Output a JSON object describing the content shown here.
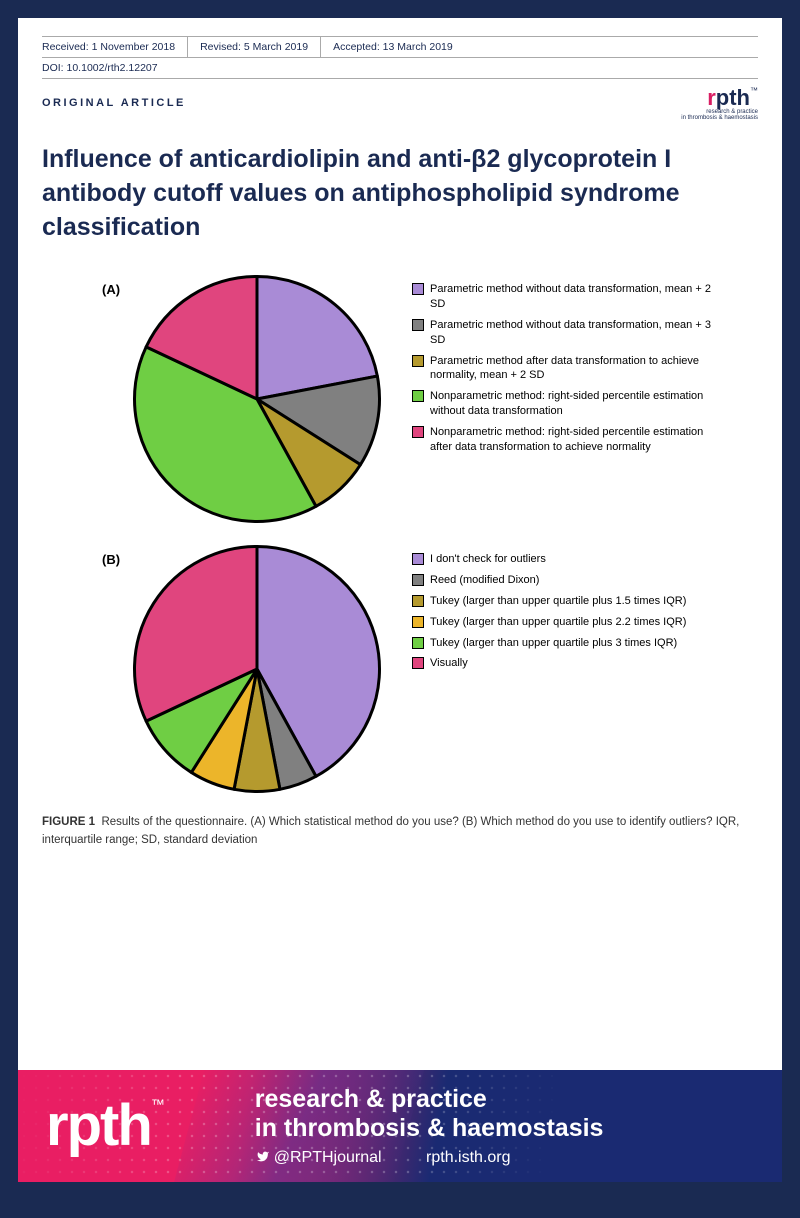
{
  "meta": {
    "received": "Received: 1 November 2018",
    "revised": "Revised: 5 March 2019",
    "accepted": "Accepted: 13 March 2019",
    "doi": "DOI: 10.1002/rth2.12207"
  },
  "article_type": "ORIGINAL ARTICLE",
  "logo_small": {
    "r": "r",
    "pth": "pth",
    "tm": "™",
    "tag1": "research & practice",
    "tag2": "in thrombosis & haemostasis"
  },
  "title": "Influence of anticardiolipin and anti-β2 glycoprotein I antibody cutoff values on antiphospholipid syndrome classification",
  "chartA": {
    "type": "pie",
    "label": "(A)",
    "stroke": "#000000",
    "stroke_width": 1.2,
    "slices": [
      {
        "value": 22,
        "color": "#a98bd6",
        "label": "Parametric method without data transformation, mean + 2 SD"
      },
      {
        "value": 12,
        "color": "#808080",
        "label": "Parametric method without data transformation, mean + 3 SD"
      },
      {
        "value": 8,
        "color": "#b59a2e",
        "label": "Parametric method after data transformation to achieve normality, mean + 2 SD"
      },
      {
        "value": 40,
        "color": "#6fce44",
        "label": "Nonparametric method: right-sided percentile estimation without data transformation"
      },
      {
        "value": 18,
        "color": "#e0457e",
        "label": "Nonparametric method: right-sided percentile estimation after data transformation to achieve normality"
      }
    ]
  },
  "chartB": {
    "type": "pie",
    "label": "(B)",
    "stroke": "#000000",
    "stroke_width": 1.2,
    "slices": [
      {
        "value": 42,
        "color": "#a98bd6",
        "label": "I don't check for outliers"
      },
      {
        "value": 5,
        "color": "#808080",
        "label": "Reed (modified Dixon)"
      },
      {
        "value": 6,
        "color": "#b59a2e",
        "label": "Tukey (larger than upper quartile plus 1.5 times IQR)"
      },
      {
        "value": 6,
        "color": "#ecb52a",
        "label": "Tukey (larger than upper quartile plus 2.2 times IQR)"
      },
      {
        "value": 9,
        "color": "#6fce44",
        "label": "Tukey (larger than upper quartile plus 3 times IQR)"
      },
      {
        "value": 32,
        "color": "#e0457e",
        "label": "Visually"
      }
    ]
  },
  "caption": {
    "lead": "FIGURE 1",
    "text": "Results of the questionnaire. (A) Which statistical method do you use? (B) Which method do you use to identify outliers? IQR, interquartile range; SD, standard deviation"
  },
  "banner": {
    "logo": "rpth",
    "tm": "™",
    "title_l1": "research & practice",
    "title_l2": "in thrombosis & haemostasis",
    "twitter": "@RPTHjournal",
    "url": "rpth.isth.org"
  }
}
